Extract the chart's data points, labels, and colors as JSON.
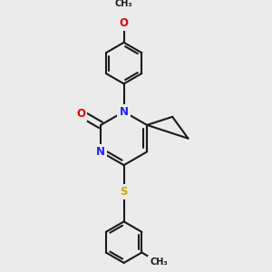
{
  "bg_color": "#ebebeb",
  "bond_color": "#1a1a1a",
  "bond_width": 1.5,
  "dbo": 0.05,
  "atom_colors": {
    "N": "#2020ff",
    "O": "#dd0000",
    "S": "#ccaa00",
    "C": "#1a1a1a"
  },
  "font_size": 8.5
}
